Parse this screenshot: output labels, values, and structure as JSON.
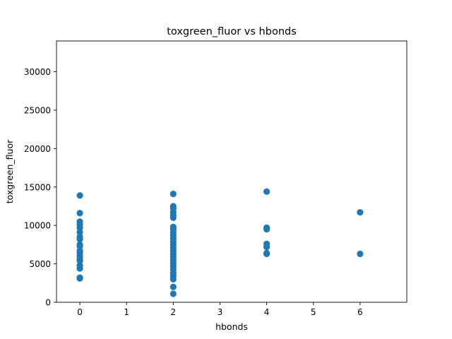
{
  "chart_data": {
    "type": "scatter",
    "title": "toxgreen_fluor vs hbonds",
    "xlabel": "hbonds",
    "ylabel": "toxgreen_fluor",
    "xlim": [
      -0.5,
      7
    ],
    "ylim": [
      0,
      34000
    ],
    "xticks": [
      0,
      1,
      2,
      3,
      4,
      5,
      6
    ],
    "yticks": [
      0,
      5000,
      10000,
      15000,
      20000,
      25000,
      30000
    ],
    "grid": false,
    "marker_color": "#1f77b4",
    "series": [
      {
        "points": [
          [
            0,
            13900
          ],
          [
            0,
            11600
          ],
          [
            0,
            10500
          ],
          [
            0,
            10100
          ],
          [
            0,
            9700
          ],
          [
            0,
            9100
          ],
          [
            0,
            8500
          ],
          [
            0,
            8200
          ],
          [
            0,
            7500
          ],
          [
            0,
            7300
          ],
          [
            0,
            6700
          ],
          [
            0,
            6400
          ],
          [
            0,
            6000
          ],
          [
            0,
            5700
          ],
          [
            0,
            5400
          ],
          [
            0,
            4800
          ],
          [
            0,
            4400
          ],
          [
            0,
            3200
          ],
          [
            0,
            3100
          ],
          [
            2,
            14100
          ],
          [
            2,
            12500
          ],
          [
            2,
            12200
          ],
          [
            2,
            11700
          ],
          [
            2,
            11300
          ],
          [
            2,
            11000
          ],
          [
            2,
            9800
          ],
          [
            2,
            9500
          ],
          [
            2,
            9100
          ],
          [
            2,
            8700
          ],
          [
            2,
            8300
          ],
          [
            2,
            7900
          ],
          [
            2,
            7500
          ],
          [
            2,
            7100
          ],
          [
            2,
            6700
          ],
          [
            2,
            6300
          ],
          [
            2,
            5900
          ],
          [
            2,
            5500
          ],
          [
            2,
            5100
          ],
          [
            2,
            4700
          ],
          [
            2,
            4300
          ],
          [
            2,
            3800
          ],
          [
            2,
            3400
          ],
          [
            2,
            3000
          ],
          [
            2,
            2000
          ],
          [
            2,
            1100
          ],
          [
            4,
            14400
          ],
          [
            4,
            9700
          ],
          [
            4,
            9500
          ],
          [
            4,
            7600
          ],
          [
            4,
            7200
          ],
          [
            4,
            6400
          ],
          [
            4,
            6300
          ],
          [
            6,
            11700
          ],
          [
            6,
            6300
          ]
        ]
      }
    ]
  }
}
